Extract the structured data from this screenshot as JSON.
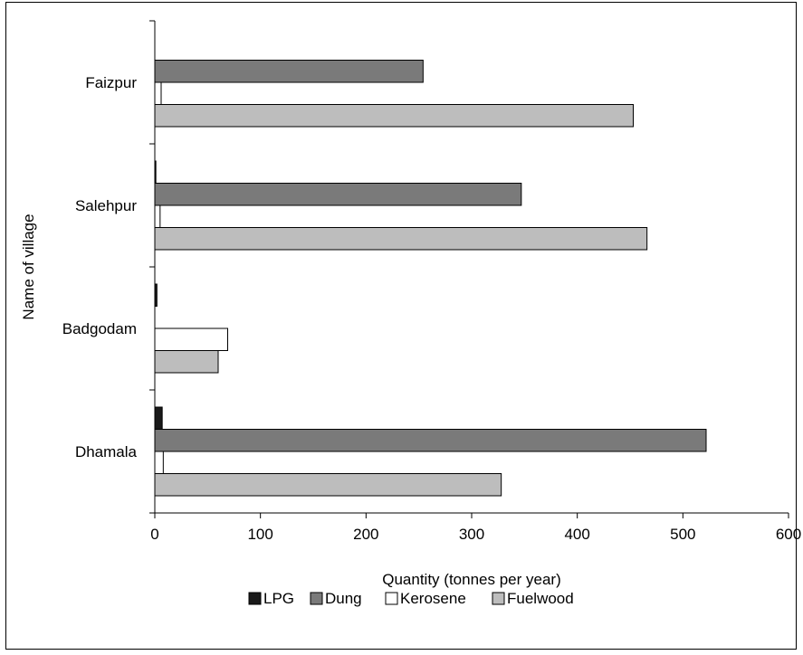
{
  "chart_data": {
    "type": "bar",
    "orientation": "horizontal",
    "categories": [
      "Faizpur",
      "Salehpur",
      "Badgodam",
      "Dhamala"
    ],
    "series": [
      {
        "name": "LPG",
        "color": "#1a1a1a",
        "values": [
          0,
          1,
          2,
          7
        ]
      },
      {
        "name": "Dung",
        "color": "#7a7a7a",
        "values": [
          254,
          347,
          0,
          522
        ]
      },
      {
        "name": "Kerosene",
        "color": "#ffffff",
        "values": [
          6,
          5,
          69,
          8
        ]
      },
      {
        "name": "Fuelwood",
        "color": "#bdbdbd",
        "values": [
          453,
          466,
          60,
          328
        ]
      }
    ],
    "xlabel": "Quantity (tonnes per year)",
    "ylabel": "Name of village",
    "xlim": [
      0,
      600
    ],
    "xticks": [
      "0",
      "100",
      "200",
      "300",
      "400",
      "500",
      "600"
    ],
    "grid": false,
    "legend_position": "bottom"
  }
}
